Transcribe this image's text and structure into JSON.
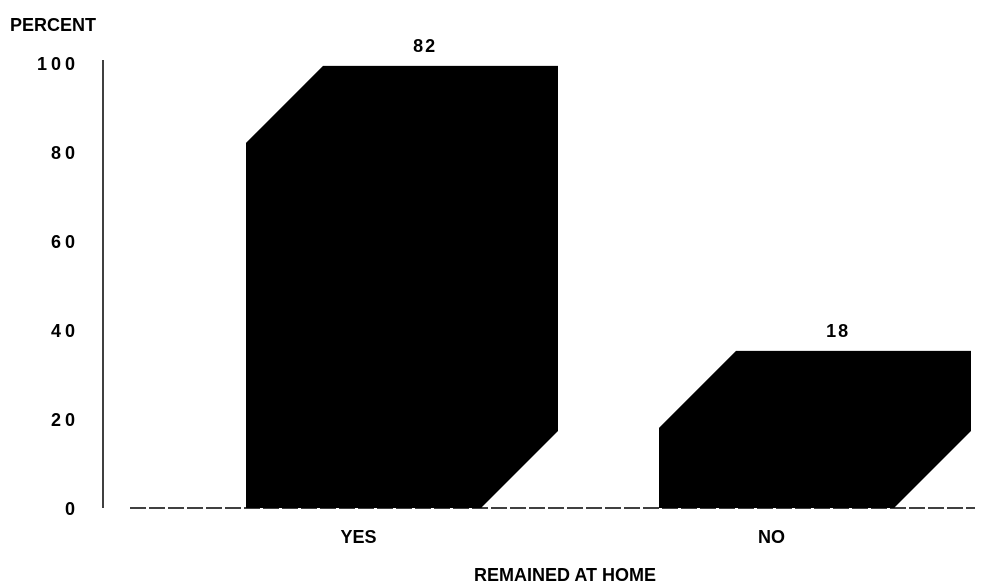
{
  "chart_data": {
    "type": "bar",
    "style": "3d",
    "ylabel": "PERCENT",
    "xlabel": "REMAINED AT HOME",
    "categories": [
      "YES",
      "NO"
    ],
    "values": [
      82,
      18
    ],
    "value_labels": [
      "82",
      "18"
    ],
    "ylim": [
      0,
      100
    ],
    "yticks": [
      "0",
      "20",
      "40",
      "60",
      "80",
      "100"
    ],
    "grid": false,
    "legend": "none",
    "colors": {
      "bar": "#000000",
      "background": "#ffffff"
    }
  }
}
